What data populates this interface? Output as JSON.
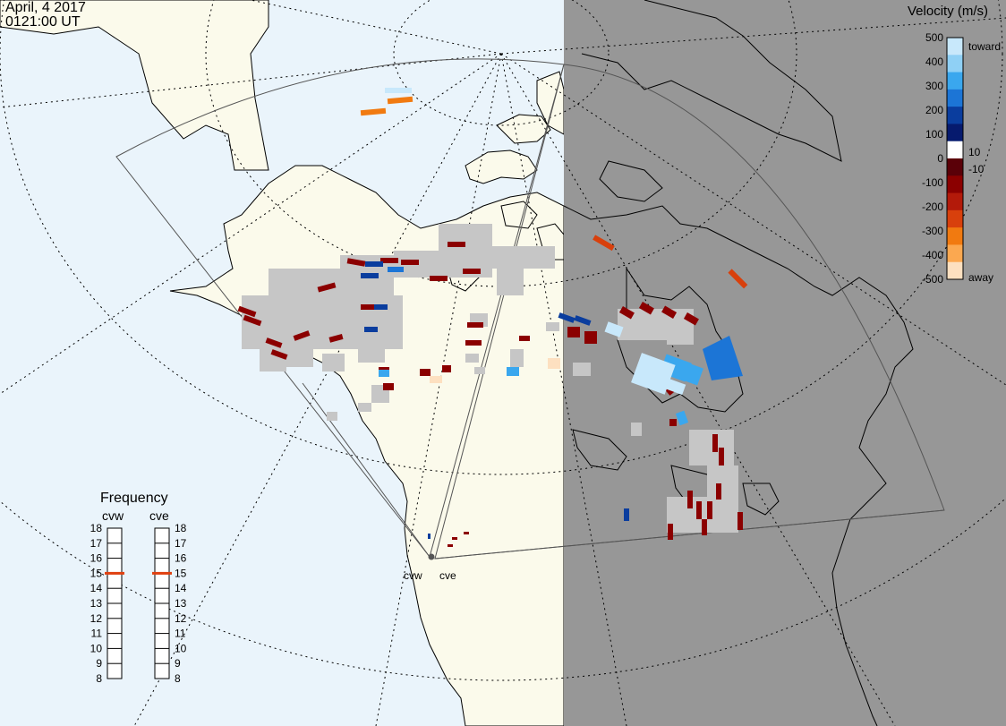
{
  "header": {
    "date": "April, 4 2017",
    "time": "0121:00 UT"
  },
  "colorbar": {
    "title": "Velocity (m/s)",
    "tick_values": [
      "500",
      "400",
      "300",
      "200",
      "100",
      "0",
      "-100",
      "-200",
      "-300",
      "-400",
      "-500"
    ],
    "inner_labels": [
      "10",
      "-10"
    ],
    "toward_label": "toward",
    "away_label": "away",
    "colors": [
      "#c8e8fb",
      "#8fd0f5",
      "#3aa7ee",
      "#1c75d6",
      "#0a3d9e",
      "#061a6e",
      "#ffffff",
      "#5a0008",
      "#8b0000",
      "#b31a0a",
      "#d8400c",
      "#f17a10",
      "#fba850",
      "#fde0c0"
    ]
  },
  "frequency": {
    "title": "Frequency",
    "radars": [
      "cvw",
      "cve"
    ],
    "ticks": [
      "18",
      "17",
      "16",
      "15",
      "14",
      "13",
      "12",
      "11",
      "10",
      "9",
      "8"
    ],
    "current": {
      "cvw": 15,
      "cve": 15
    },
    "indicator_color": "#e04010"
  },
  "stations": [
    {
      "code": "cvw"
    },
    {
      "code": "cve"
    }
  ],
  "map_colors": {
    "ocean": "#eaf4fb",
    "land": "#fbfaeb",
    "night": "#979797",
    "ground_scatter": "#c6c6c6"
  }
}
